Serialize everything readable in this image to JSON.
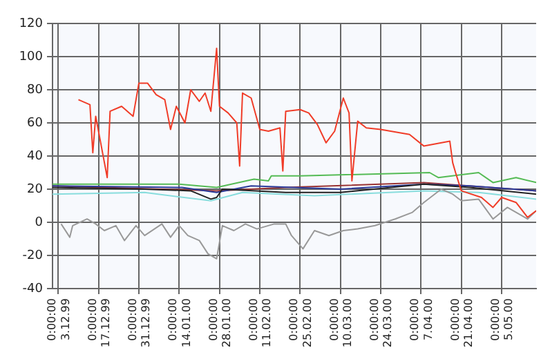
{
  "chart_data": {
    "type": "line",
    "xlim": [
      "1999-12-01",
      "2000-05-17"
    ],
    "ylim": [
      -40,
      120
    ],
    "yticks": [
      -40,
      -20,
      0,
      20,
      40,
      60,
      80,
      100,
      120
    ],
    "xticks": [
      {
        "value": "1999-12-03",
        "label": "0:00:00\n3.12.99"
      },
      {
        "value": "1999-12-17",
        "label": "0:00:00\n17.12.99"
      },
      {
        "value": "1999-12-31",
        "label": "0:00:00\n31.12.99"
      },
      {
        "value": "2000-01-14",
        "label": "0:00:00\n14.01.00"
      },
      {
        "value": "2000-01-28",
        "label": "0:00:00\n28.01.00"
      },
      {
        "value": "2000-02-11",
        "label": "0:00:00\n11.02.00"
      },
      {
        "value": "2000-02-25",
        "label": "0:00:00\n25.02.00"
      },
      {
        "value": "2000-03-10",
        "label": "0:00:00\n10.03.00"
      },
      {
        "value": "2000-03-24",
        "label": "0:00:00\n24.03.00"
      },
      {
        "value": "2000-04-07",
        "label": "0:00:00\n7.04.00"
      },
      {
        "value": "2000-04-21",
        "label": "0:00:00\n21.04.00"
      },
      {
        "value": "2000-05-05",
        "label": "0:00:00\n5.05.00"
      }
    ],
    "grid": true,
    "legend": false,
    "marker": "none",
    "line_style": "solid",
    "series": [
      {
        "color": "#f03c28",
        "x": [
          "1999-12-10",
          "1999-12-14",
          "1999-12-15",
          "1999-12-16",
          "1999-12-20",
          "1999-12-21",
          "1999-12-25",
          "1999-12-29",
          "1999-12-31",
          "2000-01-03",
          "2000-01-06",
          "2000-01-09",
          "2000-01-11",
          "2000-01-13",
          "2000-01-16",
          "2000-01-18",
          "2000-01-21",
          "2000-01-23",
          "2000-01-25",
          "2000-01-27",
          "2000-01-28",
          "2000-01-31",
          "2000-02-03",
          "2000-02-04",
          "2000-02-05",
          "2000-02-08",
          "2000-02-11",
          "2000-02-14",
          "2000-02-18",
          "2000-02-19",
          "2000-02-20",
          "2000-02-25",
          "2000-02-28",
          "2000-03-02",
          "2000-03-05",
          "2000-03-08",
          "2000-03-11",
          "2000-03-13",
          "2000-03-14",
          "2000-03-16",
          "2000-03-19",
          "2000-03-24",
          "2000-04-03",
          "2000-04-08",
          "2000-04-17",
          "2000-04-18",
          "2000-04-19",
          "2000-04-21",
          "2000-04-28",
          "2000-05-02",
          "2000-05-05",
          "2000-05-10",
          "2000-05-14",
          "2000-05-17"
        ],
        "values": [
          74,
          71,
          42,
          64,
          27,
          67,
          70,
          64,
          84,
          84,
          77,
          74,
          56,
          70,
          60,
          80,
          73,
          78,
          67,
          105,
          70,
          66,
          60,
          34,
          78,
          75,
          56,
          55,
          57,
          31,
          67,
          68,
          66,
          59,
          48,
          55,
          75,
          66,
          25,
          61,
          57,
          56,
          53,
          46,
          49,
          36,
          30,
          19,
          15,
          9,
          15,
          12,
          3,
          7
        ]
      },
      {
        "color": "#999999",
        "x": [
          "1999-12-04",
          "1999-12-07",
          "1999-12-08",
          "1999-12-13",
          "1999-12-16",
          "1999-12-19",
          "1999-12-23",
          "1999-12-26",
          "1999-12-30",
          "2000-01-02",
          "2000-01-08",
          "2000-01-11",
          "2000-01-14",
          "2000-01-17",
          "2000-01-21",
          "2000-01-24",
          "2000-01-27",
          "2000-01-29",
          "2000-02-02",
          "2000-02-06",
          "2000-02-10",
          "2000-02-16",
          "2000-02-20",
          "2000-02-22",
          "2000-02-26",
          "2000-03-01",
          "2000-03-06",
          "2000-03-11",
          "2000-03-16",
          "2000-03-22",
          "2000-03-29",
          "2000-04-04",
          "2000-04-08",
          "2000-04-14",
          "2000-04-18",
          "2000-04-21",
          "2000-04-27",
          "2000-05-02",
          "2000-05-07",
          "2000-05-14",
          "2000-05-17"
        ],
        "values": [
          -1,
          -9,
          -2,
          2,
          -1,
          -5,
          -2,
          -11,
          -2,
          -8,
          -1,
          -9,
          -2,
          -8,
          -11,
          -19,
          -22,
          -2,
          -5,
          -1,
          -4,
          -1,
          -1,
          -8,
          -16,
          -5,
          -8,
          -5,
          -4,
          -2,
          2,
          6,
          12,
          20,
          17,
          13,
          14,
          2,
          9,
          2,
          7
        ]
      },
      {
        "color": "#55bb55",
        "x": [
          "1999-12-01",
          "2000-01-14",
          "2000-01-27",
          "2000-02-09",
          "2000-02-14",
          "2000-02-15",
          "2000-02-25",
          "2000-04-10",
          "2000-04-13",
          "2000-04-27",
          "2000-05-02",
          "2000-05-10",
          "2000-05-17"
        ],
        "values": [
          23,
          23,
          21,
          26,
          25,
          28,
          28,
          30,
          27,
          30,
          24,
          27,
          24
        ]
      },
      {
        "color": "#222222",
        "x": [
          "1999-12-01",
          "2000-01-02",
          "2000-01-18",
          "2000-01-25",
          "2000-01-27",
          "2000-01-29",
          "2000-02-20",
          "2000-03-10",
          "2000-04-08",
          "2000-04-24",
          "2000-05-17"
        ],
        "values": [
          21,
          20,
          19,
          14,
          15,
          20,
          18,
          18,
          23,
          21,
          17
        ]
      },
      {
        "color": "#2a3a9a",
        "x": [
          "1999-12-01",
          "2000-01-15",
          "2000-01-27",
          "2000-02-08",
          "2000-03-10",
          "2000-04-08",
          "2000-04-24",
          "2000-05-17"
        ],
        "values": [
          22,
          21,
          18,
          22,
          20,
          23,
          22,
          19
        ]
      },
      {
        "color": "#993333",
        "x": [
          "1999-12-01",
          "2000-01-27",
          "2000-02-20",
          "2000-04-08",
          "2000-05-17"
        ],
        "values": [
          22,
          19,
          21,
          24,
          19
        ]
      },
      {
        "color": "#88dddd",
        "x": [
          "1999-12-01",
          "2000-01-02",
          "2000-01-25",
          "2000-02-05",
          "2000-03-01",
          "2000-04-08",
          "2000-04-27",
          "2000-05-17"
        ],
        "values": [
          17,
          18,
          13,
          18,
          16,
          19,
          18,
          14
        ]
      }
    ]
  }
}
